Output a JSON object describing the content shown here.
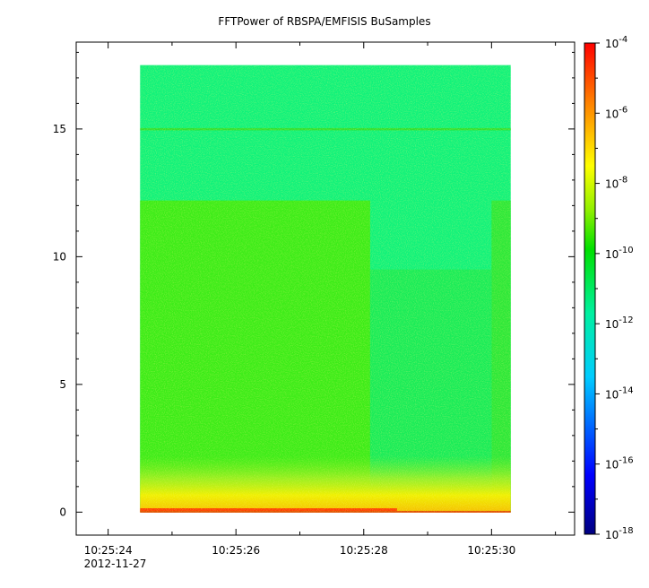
{
  "chart_data": {
    "type": "heatmap",
    "title": "FFTPower of RBSPA/EMFISIS  BuSamples",
    "xlabel": "",
    "ylabel": "",
    "x_ticks": [
      "10:25:24",
      "10:25:26",
      "10:25:28",
      "10:25:30"
    ],
    "x_date_label": "2012-11-27",
    "x_range": [
      "10:25:23.5",
      "10:25:31.3"
    ],
    "y_ticks": [
      0,
      5,
      10,
      15
    ],
    "ylim": [
      -0.9,
      18.4
    ],
    "data_time_range": [
      "10:25:24.5",
      "10:25:30.3"
    ],
    "data_freq_range": [
      0,
      17.5
    ],
    "colorbar": {
      "scale": "log",
      "range": [
        "1e-18",
        "1e-4"
      ],
      "ticks": [
        {
          "base": "10",
          "exp": "-4"
        },
        {
          "base": "10",
          "exp": "-6"
        },
        {
          "base": "10",
          "exp": "-8"
        },
        {
          "base": "10",
          "exp": "-10"
        },
        {
          "base": "10",
          "exp": "-12"
        },
        {
          "base": "10",
          "exp": "-14"
        },
        {
          "base": "10",
          "exp": "-16"
        },
        {
          "base": "10",
          "exp": "-18"
        }
      ],
      "colormap": "rainbow"
    },
    "grid": false,
    "legend": "colorbar-right"
  }
}
